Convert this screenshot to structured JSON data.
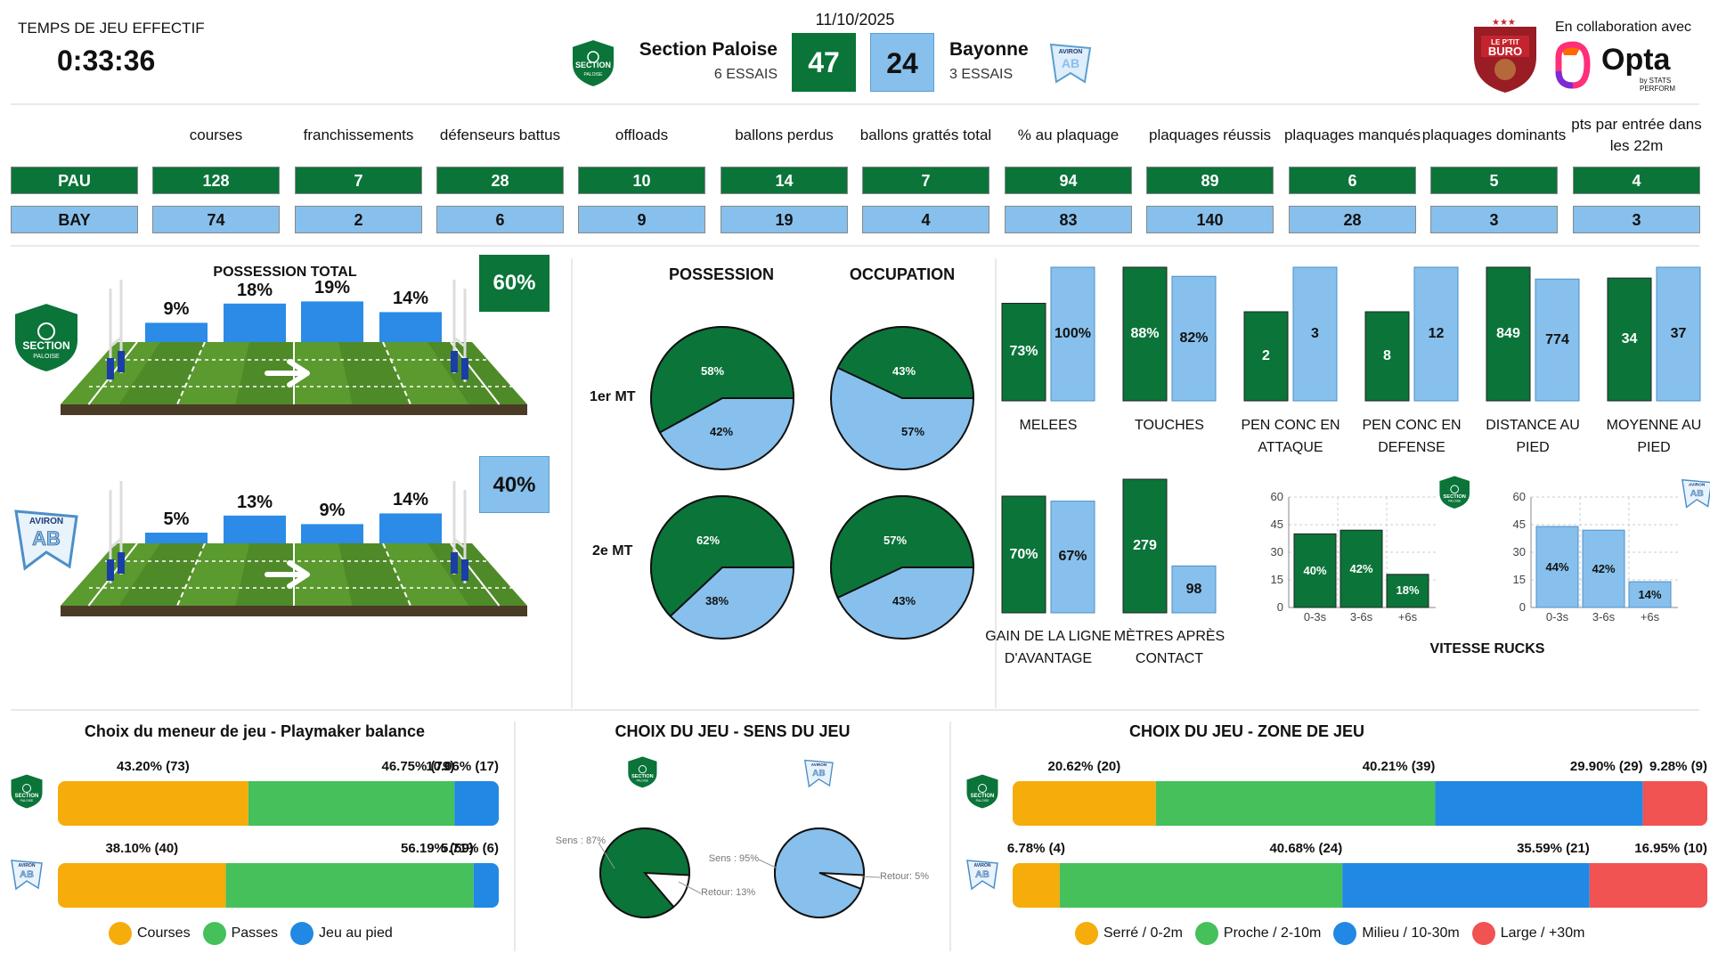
{
  "colors": {
    "pau": "#0a7439",
    "bay": "#87c0ec",
    "bay_bright": "#2b8be6",
    "yellow": "#f6ac0b",
    "green": "#45c05b",
    "blue": "#2188e3",
    "red": "#f15252"
  },
  "header": {
    "clock_label": "TEMPS DE JEU EFFECTIF",
    "clock": "0:33:36",
    "date": "11/10/2025",
    "home_name": "Section Paloise",
    "home_tries": "6 ESSAIS",
    "home_score": "47",
    "away_name": "Bayonne",
    "away_tries": "3 ESSAIS",
    "away_score": "24",
    "collab": "En collaboration avec",
    "opta": "Opta",
    "opta_sub": "by STATS PERFORM",
    "buro_logo_text": "LE P'TIT BURO"
  },
  "stats": {
    "headers": [
      "courses",
      "franchissements",
      "défenseurs battus",
      "offloads",
      "ballons perdus",
      "ballons grattés total",
      "% au plaquage",
      "plaquages réussis",
      "plaquages manqués",
      "plaquages dominants",
      "pts par entrée dans les 22m"
    ],
    "pau": {
      "label": "PAU",
      "values": [
        "128",
        "7",
        "28",
        "10",
        "14",
        "7",
        "94",
        "89",
        "6",
        "5",
        "4"
      ]
    },
    "bay": {
      "label": "BAY",
      "values": [
        "74",
        "2",
        "6",
        "9",
        "19",
        "4",
        "83",
        "140",
        "28",
        "3",
        "3"
      ]
    }
  },
  "possession": {
    "title": "POSSESSION TOTAL",
    "pau_total": "60%",
    "bay_total": "40%",
    "pau_zones": [
      9,
      18,
      19,
      14
    ],
    "pau_zone_labels": [
      "9%",
      "18%",
      "19%",
      "14%"
    ],
    "bay_zones": [
      5,
      13,
      9,
      14
    ],
    "bay_zone_labels": [
      "5%",
      "13%",
      "9%",
      "14%"
    ]
  },
  "pies": {
    "col1": "POSSESSION",
    "col2": "OCCUPATION",
    "row1": "1er MT",
    "row2": "2e MT",
    "p1": {
      "pau": 58,
      "bay": 42,
      "pau_label": "58%",
      "bay_label": "42%"
    },
    "o1": {
      "pau": 43,
      "bay": 57,
      "pau_label": "43%",
      "bay_label": "57%"
    },
    "p2": {
      "pau": 62,
      "bay": 38,
      "pau_label": "62%",
      "bay_label": "38%"
    },
    "o2": {
      "pau": 57,
      "bay": 43,
      "pau_label": "57%",
      "bay_label": "43%"
    }
  },
  "set_pieces": [
    {
      "label": "MELEES",
      "pau": "73%",
      "bay": "100%",
      "pau_v": 73,
      "bay_v": 100
    },
    {
      "label": "TOUCHES",
      "pau": "88%",
      "bay": "82%",
      "pau_v": 88,
      "bay_v": 82
    },
    {
      "label": "PEN CONC EN ATTAQUE",
      "pau": "2",
      "bay": "3",
      "pau_v": 2,
      "bay_v": 3
    },
    {
      "label": "PEN CONC EN DEFENSE",
      "pau": "8",
      "bay": "12",
      "pau_v": 8,
      "bay_v": 12
    },
    {
      "label": "DISTANCE AU PIED",
      "pau": "849",
      "bay": "774",
      "pau_v": 849,
      "bay_v": 774
    },
    {
      "label": "MOYENNE AU PIED",
      "pau": "34",
      "bay": "37",
      "pau_v": 34,
      "bay_v": 37
    }
  ],
  "gain": [
    {
      "label": "GAIN DE LA LIGNE D'AVANTAGE",
      "pau": "70%",
      "bay": "67%",
      "pau_v": 70,
      "bay_v": 67
    },
    {
      "label": "MÈTRES APRÈS CONTACT",
      "pau": "279",
      "bay": "98",
      "pau_v": 279,
      "bay_v": 98
    }
  ],
  "chart_data": [
    {
      "type": "bar",
      "title": "VITESSE RUCKS",
      "series": [
        {
          "name": "Section Paloise",
          "values": [
            40,
            42,
            18
          ],
          "labels": [
            "40%",
            "42%",
            "18%"
          ]
        }
      ],
      "categories": [
        "0-3s",
        "3-6s",
        "+6s"
      ],
      "ylim": [
        0,
        60
      ],
      "yticks": [
        "0",
        "15",
        "30",
        "45",
        "60"
      ]
    },
    {
      "type": "bar",
      "title": "VITESSE RUCKS",
      "series": [
        {
          "name": "Bayonne",
          "values": [
            44,
            42,
            14
          ],
          "labels": [
            "44%",
            "42%",
            "14%"
          ]
        }
      ],
      "categories": [
        "0-3s",
        "3-6s",
        "+6s"
      ],
      "ylim": [
        0,
        60
      ],
      "yticks": [
        "0",
        "15",
        "30",
        "45",
        "60"
      ]
    }
  ],
  "playmaker": {
    "title": "Choix du meneur de jeu - Playmaker balance",
    "pau": {
      "values": [
        43.2,
        46.75,
        10.06
      ],
      "labels": [
        "43.20% (73)",
        "46.75% (79)",
        "10.06% (17)"
      ]
    },
    "bay": {
      "values": [
        38.1,
        56.19,
        5.71
      ],
      "labels": [
        "38.10% (40)",
        "56.19% (59)",
        "5.71% (6)"
      ]
    },
    "legend": [
      "Courses",
      "Passes",
      "Jeu au pied"
    ]
  },
  "sens": {
    "title": "CHOIX DU JEU - SENS DU JEU",
    "pau": {
      "sens": 87,
      "retour": 13,
      "sens_label": "Sens : 87%",
      "retour_label": "Retour: 13%"
    },
    "bay": {
      "sens": 95,
      "retour": 5,
      "sens_label": "Sens : 95%",
      "retour_label": "Retour: 5%"
    }
  },
  "zone": {
    "title": "CHOIX DU JEU - ZONE DE JEU",
    "pau": {
      "values": [
        20.62,
        40.21,
        29.9,
        9.28
      ],
      "labels": [
        "20.62% (20)",
        "40.21% (39)",
        "29.90% (29)",
        "9.28% (9)"
      ]
    },
    "bay": {
      "values": [
        6.78,
        40.68,
        35.59,
        16.95
      ],
      "labels": [
        "6.78% (4)",
        "40.68% (24)",
        "35.59% (21)",
        "16.95% (10)"
      ]
    },
    "legend": [
      "Serré / 0-2m",
      "Proche / 2-10m",
      "Milieu / 10-30m",
      "Large / +30m"
    ]
  },
  "logos": {
    "pau_short": "SECTION",
    "pau_sub": "PALOISE",
    "bay_short": "AVIRON",
    "bay_sub": "AB"
  }
}
